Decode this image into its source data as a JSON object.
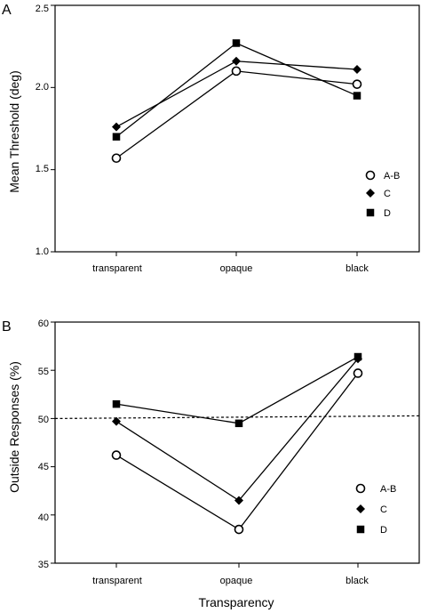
{
  "chart_data": [
    {
      "type": "line",
      "panel_label": "A",
      "ylabel": "Mean Threshold (deg)",
      "xlabel": "",
      "categories": [
        "transparent",
        "opaque",
        "black"
      ],
      "ylim": [
        1.0,
        2.5
      ],
      "yticks": [
        "1.0",
        "1.5",
        "2.0",
        "2.5"
      ],
      "legend_position": "right",
      "series": [
        {
          "name": "A-B",
          "marker": "circle-open",
          "values": [
            1.57,
            2.1,
            2.02
          ]
        },
        {
          "name": "C",
          "marker": "diamond-filled",
          "values": [
            1.76,
            2.16,
            2.11
          ]
        },
        {
          "name": "D",
          "marker": "square-filled",
          "values": [
            1.7,
            2.27,
            1.95
          ]
        }
      ]
    },
    {
      "type": "line",
      "panel_label": "B",
      "ylabel": "Outside Responses (%)",
      "xlabel": "Transparency",
      "categories": [
        "transparent",
        "opaque",
        "black"
      ],
      "ylim": [
        35,
        60
      ],
      "yticks": [
        "35",
        "40",
        "45",
        "50",
        "55",
        "60"
      ],
      "reference_line": 50,
      "legend_position": "bottom-right",
      "series": [
        {
          "name": "A-B",
          "marker": "circle-open",
          "values": [
            46.2,
            38.5,
            54.7
          ]
        },
        {
          "name": "C",
          "marker": "diamond-filled",
          "values": [
            49.7,
            41.5,
            56.2
          ]
        },
        {
          "name": "D",
          "marker": "square-filled",
          "values": [
            51.5,
            49.5,
            56.4
          ]
        }
      ]
    }
  ]
}
